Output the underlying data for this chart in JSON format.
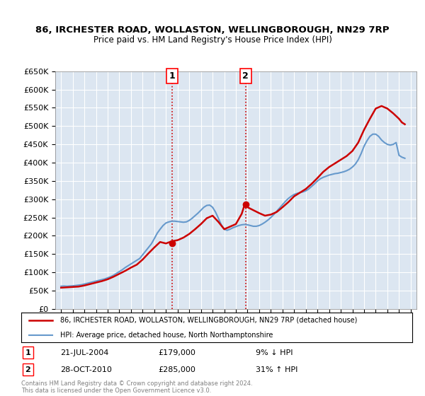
{
  "title": "86, IRCHESTER ROAD, WOLLASTON, WELLINGBOROUGH, NN29 7RP",
  "subtitle": "Price paid vs. HM Land Registry's House Price Index (HPI)",
  "background_color": "#dce6f1",
  "plot_bg_color": "#dce6f1",
  "red_color": "#cc0000",
  "blue_color": "#6699cc",
  "vline_color": "#cc0000",
  "vline_style": ":",
  "vline1_year": 2004.55,
  "vline2_year": 2010.83,
  "marker1_label": "1",
  "marker2_label": "2",
  "marker1_x": 2004.55,
  "marker2_x": 2010.83,
  "marker_y": 650000,
  "annotation1_date": "21-JUL-2004",
  "annotation1_price": "£179,000",
  "annotation1_hpi": "9% ↓ HPI",
  "annotation2_date": "28-OCT-2010",
  "annotation2_price": "£285,000",
  "annotation2_hpi": "31% ↑ HPI",
  "legend_line1": "86, IRCHESTER ROAD, WOLLASTON, WELLINGBOROUGH, NN29 7RP (detached house)",
  "legend_line2": "HPI: Average price, detached house, North Northamptonshire",
  "footer1": "Contains HM Land Registry data © Crown copyright and database right 2024.",
  "footer2": "This data is licensed under the Open Government Licence v3.0.",
  "ylim": [
    0,
    650000
  ],
  "yticks": [
    0,
    50000,
    100000,
    150000,
    200000,
    250000,
    300000,
    350000,
    400000,
    450000,
    500000,
    550000,
    600000,
    650000
  ],
  "xlim_start": 1994.5,
  "xlim_end": 2025.5,
  "hpi_years": [
    1995,
    1995.25,
    1995.5,
    1995.75,
    1996,
    1996.25,
    1996.5,
    1996.75,
    1997,
    1997.25,
    1997.5,
    1997.75,
    1998,
    1998.25,
    1998.5,
    1998.75,
    1999,
    1999.25,
    1999.5,
    1999.75,
    2000,
    2000.25,
    2000.5,
    2000.75,
    2001,
    2001.25,
    2001.5,
    2001.75,
    2002,
    2002.25,
    2002.5,
    2002.75,
    2003,
    2003.25,
    2003.5,
    2003.75,
    2004,
    2004.25,
    2004.5,
    2004.75,
    2005,
    2005.25,
    2005.5,
    2005.75,
    2006,
    2006.25,
    2006.5,
    2006.75,
    2007,
    2007.25,
    2007.5,
    2007.75,
    2008,
    2008.25,
    2008.5,
    2008.75,
    2009,
    2009.25,
    2009.5,
    2009.75,
    2010,
    2010.25,
    2010.5,
    2010.75,
    2011,
    2011.25,
    2011.5,
    2011.75,
    2012,
    2012.25,
    2012.5,
    2012.75,
    2013,
    2013.25,
    2013.5,
    2013.75,
    2014,
    2014.25,
    2014.5,
    2014.75,
    2015,
    2015.25,
    2015.5,
    2015.75,
    2016,
    2016.25,
    2016.5,
    2016.75,
    2017,
    2017.25,
    2017.5,
    2017.75,
    2018,
    2018.25,
    2018.5,
    2018.75,
    2019,
    2019.25,
    2019.5,
    2019.75,
    2020,
    2020.25,
    2020.5,
    2020.75,
    2021,
    2021.25,
    2021.5,
    2021.75,
    2022,
    2022.25,
    2022.5,
    2022.75,
    2023,
    2023.25,
    2023.5,
    2023.75,
    2024,
    2024.25,
    2024.5
  ],
  "hpi_values": [
    62000,
    62500,
    62000,
    62500,
    63000,
    64000,
    65000,
    66000,
    68000,
    70000,
    72000,
    74000,
    76000,
    78000,
    80000,
    82000,
    85000,
    88000,
    92000,
    97000,
    102000,
    107000,
    113000,
    118000,
    123000,
    128000,
    133000,
    138000,
    148000,
    158000,
    168000,
    178000,
    192000,
    207000,
    218000,
    228000,
    235000,
    238000,
    240000,
    240000,
    239000,
    238000,
    237000,
    238000,
    242000,
    248000,
    255000,
    262000,
    270000,
    278000,
    283000,
    284000,
    278000,
    265000,
    248000,
    230000,
    218000,
    215000,
    218000,
    222000,
    225000,
    228000,
    230000,
    231000,
    230000,
    228000,
    226000,
    226000,
    228000,
    232000,
    237000,
    243000,
    250000,
    258000,
    267000,
    276000,
    285000,
    294000,
    302000,
    308000,
    313000,
    316000,
    318000,
    320000,
    323000,
    328000,
    335000,
    342000,
    350000,
    356000,
    360000,
    363000,
    366000,
    368000,
    370000,
    371000,
    373000,
    375000,
    378000,
    382000,
    388000,
    396000,
    408000,
    425000,
    445000,
    460000,
    472000,
    478000,
    478000,
    472000,
    462000,
    455000,
    450000,
    448000,
    450000,
    455000,
    420000,
    415000,
    412000
  ],
  "price_years": [
    1995,
    1995.5,
    1996,
    1996.5,
    1997,
    1997.5,
    1998,
    1998.5,
    1999,
    1999.5,
    2000,
    2000.5,
    2001,
    2001.5,
    2002,
    2002.5,
    2003,
    2003.5,
    2004,
    2004.25,
    2004.5,
    2005,
    2005.5,
    2006,
    2006.5,
    2007,
    2007.5,
    2008,
    2008.5,
    2009,
    2009.5,
    2010,
    2010.5,
    2010.75,
    2011,
    2011.5,
    2012,
    2012.5,
    2013,
    2013.5,
    2014,
    2014.5,
    2015,
    2015.5,
    2016,
    2016.5,
    2017,
    2017.5,
    2018,
    2018.5,
    2019,
    2019.5,
    2020,
    2020.5,
    2021,
    2021.5,
    2022,
    2022.5,
    2023,
    2023.5,
    2024,
    2024.25,
    2024.5
  ],
  "price_values": [
    58000,
    59000,
    60000,
    61000,
    64000,
    68000,
    72000,
    76000,
    81000,
    88000,
    96000,
    104000,
    113000,
    121000,
    135000,
    152000,
    168000,
    183000,
    179000,
    182000,
    185000,
    188000,
    195000,
    205000,
    218000,
    232000,
    248000,
    255000,
    238000,
    218000,
    225000,
    232000,
    260000,
    285000,
    278000,
    270000,
    262000,
    255000,
    258000,
    265000,
    278000,
    292000,
    308000,
    318000,
    328000,
    342000,
    358000,
    375000,
    388000,
    398000,
    408000,
    418000,
    432000,
    455000,
    490000,
    520000,
    548000,
    555000,
    548000,
    535000,
    520000,
    510000,
    505000
  ]
}
